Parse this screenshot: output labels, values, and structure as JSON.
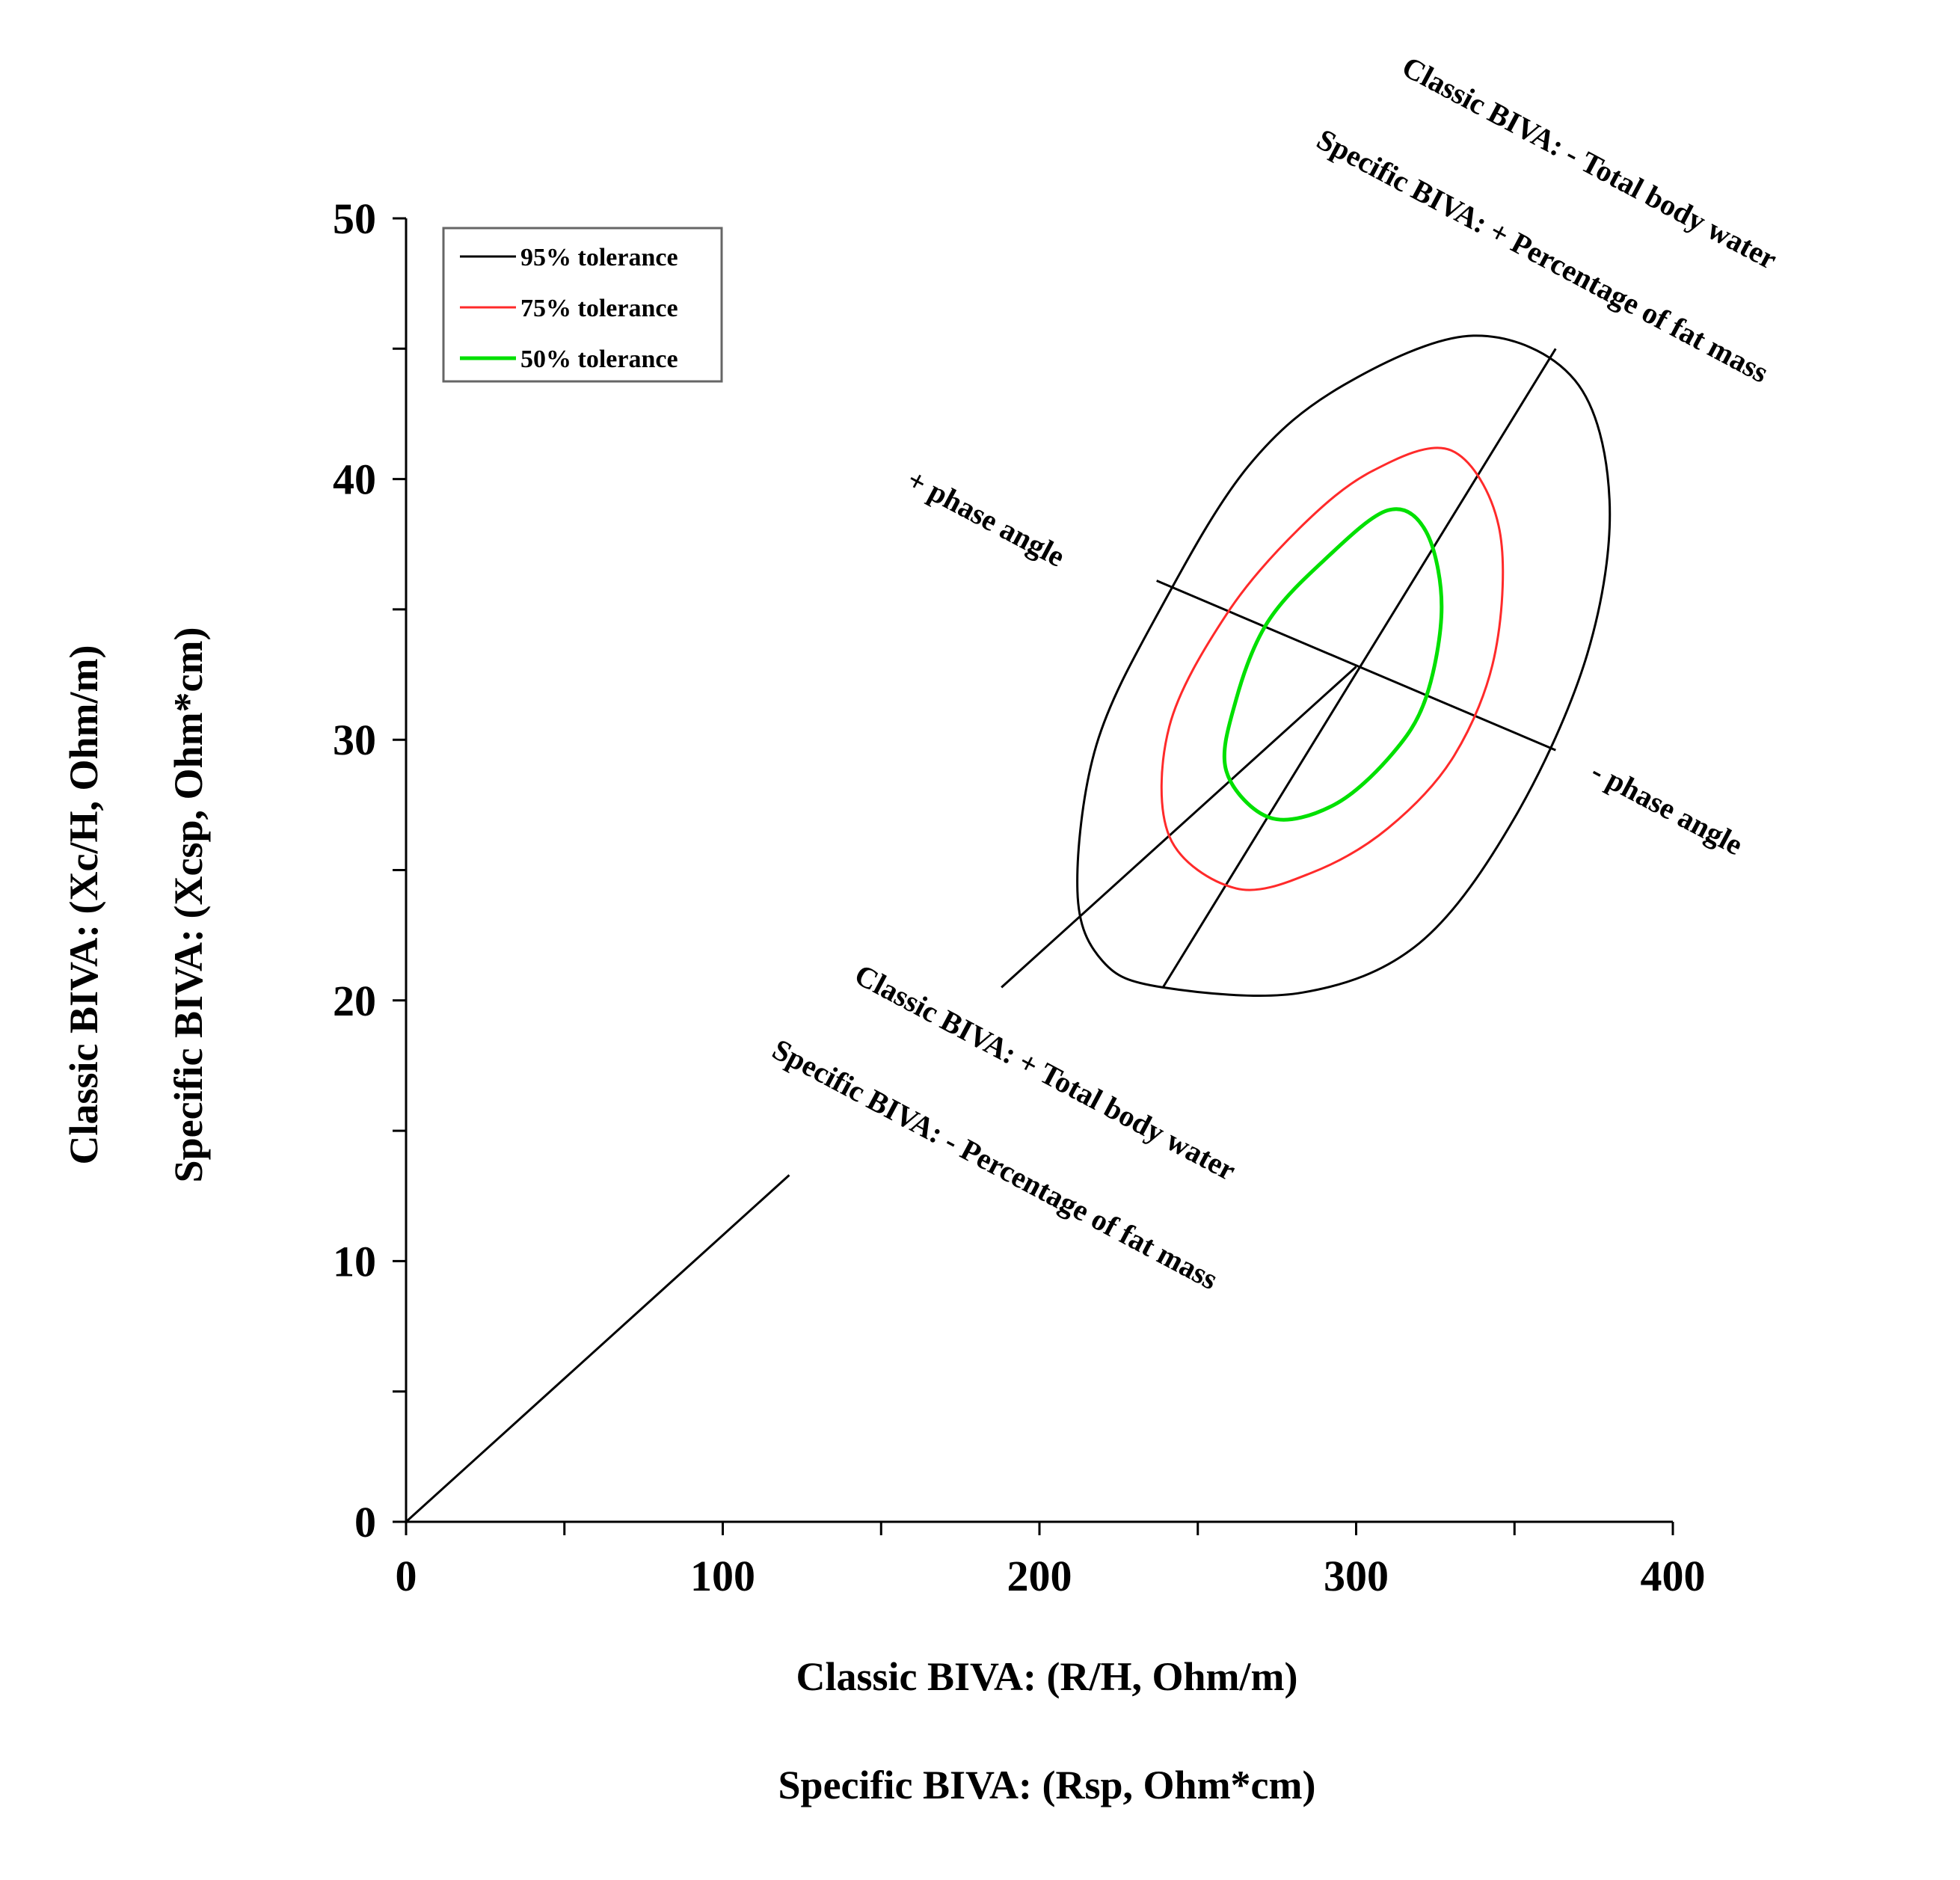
{
  "chart_data": {
    "type": "scatter",
    "title": "",
    "xlabel": [
      "Classic BIVA: (R/H, Ohm/m)",
      "Specific BIVA: (Rsp, Ohm*cm)"
    ],
    "ylabel": [
      "Classic BIVA: (Xc/H, Ohm/m)",
      "Specific BIVA: (Xcsp, Ohm*cm)"
    ],
    "xlim": [
      0,
      400
    ],
    "ylim": [
      0,
      50
    ],
    "x_ticks": [
      "0",
      "100",
      "200",
      "300",
      "400"
    ],
    "y_ticks": [
      "0",
      "10",
      "20",
      "30",
      "40",
      "50"
    ],
    "grid": false,
    "legend_position": "top-left",
    "series": [
      {
        "name": "95% tolerance",
        "color": "#000000",
        "center": [
          300,
          32.8
        ],
        "points": [
          [
            239,
            20.5
          ],
          [
            283,
            20.3
          ],
          [
            320,
            22.2
          ],
          [
            350,
            27.0
          ],
          [
            373,
            33.3
          ],
          [
            380,
            39.2
          ],
          [
            369,
            43.8
          ],
          [
            337,
            45.5
          ],
          [
            296,
            43.6
          ],
          [
            266,
            40.5
          ],
          [
            239,
            35.2
          ],
          [
            218,
            29.8
          ],
          [
            212,
            24.2
          ],
          [
            220,
            21.5
          ]
        ]
      },
      {
        "name": "75% tolerance",
        "color": "#ff2a2a",
        "center": [
          300,
          32.8
        ],
        "points": [
          [
            262,
            24.3
          ],
          [
            286,
            24.9
          ],
          [
            310,
            26.6
          ],
          [
            331,
            29.4
          ],
          [
            344,
            33.4
          ],
          [
            345,
            38.2
          ],
          [
            330,
            41.1
          ],
          [
            305,
            40.3
          ],
          [
            282,
            38.1
          ],
          [
            259,
            34.8
          ],
          [
            241,
            30.5
          ],
          [
            241,
            26.3
          ]
        ]
      },
      {
        "name": "50% tolerance",
        "color": "#00e000",
        "center": [
          300,
          32.8
        ],
        "points": [
          [
            273,
            27.0
          ],
          [
            293,
            27.5
          ],
          [
            311,
            29.4
          ],
          [
            322,
            31.6
          ],
          [
            327,
            35.1
          ],
          [
            322,
            38.0
          ],
          [
            310,
            38.8
          ],
          [
            290,
            36.9
          ],
          [
            272,
            34.5
          ],
          [
            262,
            31.5
          ],
          [
            259,
            28.8
          ]
        ]
      }
    ],
    "lines": [
      {
        "name": "bisector",
        "points": [
          [
            0,
            0
          ],
          [
            121,
            13.3
          ]
        ]
      },
      {
        "name": "bisector-upper",
        "points": [
          [
            188,
            20.5
          ],
          [
            300,
            32.8
          ]
        ]
      },
      {
        "name": "major-axis",
        "points": [
          [
            239,
            20.5
          ],
          [
            363,
            45.0
          ]
        ]
      },
      {
        "name": "minor-axis",
        "points": [
          [
            237,
            36.1
          ],
          [
            363,
            29.6
          ]
        ]
      }
    ],
    "annotations": [
      {
        "line1": "Classic BIVA:  - Total body water",
        "line2": "Specific BIVA: + Percentage of fat mass"
      },
      {
        "line1": "Classic BIVA:  + Total body water",
        "line2": "Specific BIVA:  - Percentage of fat mass"
      },
      {
        "text": "+ phase angle"
      },
      {
        "text": "- phase angle"
      }
    ]
  }
}
